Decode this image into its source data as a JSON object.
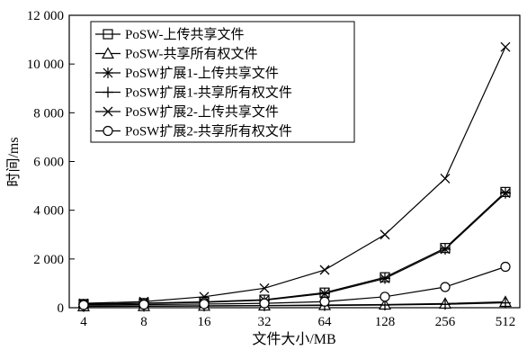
{
  "chart_data": {
    "type": "line",
    "xlabel": "文件大小/MB",
    "ylabel": "时间/ms",
    "x": [
      4,
      8,
      16,
      32,
      64,
      128,
      256,
      512
    ],
    "x_tick_labels": [
      "4",
      "8",
      "16",
      "32",
      "64",
      "128",
      "256",
      "512"
    ],
    "x_scale": "log2",
    "ylim": [
      0,
      12000
    ],
    "y_ticks": [
      0,
      2000,
      4000,
      6000,
      8000,
      10000,
      12000
    ],
    "y_tick_labels": [
      "0",
      "2 000",
      "4 000",
      "6 000",
      "8 000",
      "10 000",
      "12 000"
    ],
    "grid": false,
    "legend_position": "top-left",
    "series": [
      {
        "name": "PoSW-上传共享文件",
        "marker": "square",
        "values": [
          150,
          190,
          240,
          330,
          620,
          1250,
          2450,
          4750
        ]
      },
      {
        "name": "PoSW-共享所有权文件",
        "marker": "triangle",
        "values": [
          60,
          70,
          80,
          90,
          110,
          130,
          170,
          240
        ]
      },
      {
        "name": "PoSW扩展1-上传共享文件",
        "marker": "asterisk",
        "values": [
          140,
          180,
          220,
          310,
          580,
          1200,
          2400,
          4700
        ]
      },
      {
        "name": "PoSW扩展1-共享所有权文件",
        "marker": "plus",
        "values": [
          50,
          60,
          70,
          80,
          90,
          110,
          140,
          200
        ]
      },
      {
        "name": "PoSW扩展2-上传共享文件",
        "marker": "x",
        "values": [
          180,
          250,
          450,
          800,
          1550,
          3000,
          5300,
          10700
        ]
      },
      {
        "name": "PoSW扩展2-共享所有权文件",
        "marker": "circle",
        "values": [
          110,
          130,
          150,
          180,
          250,
          450,
          850,
          1680
        ]
      }
    ]
  }
}
